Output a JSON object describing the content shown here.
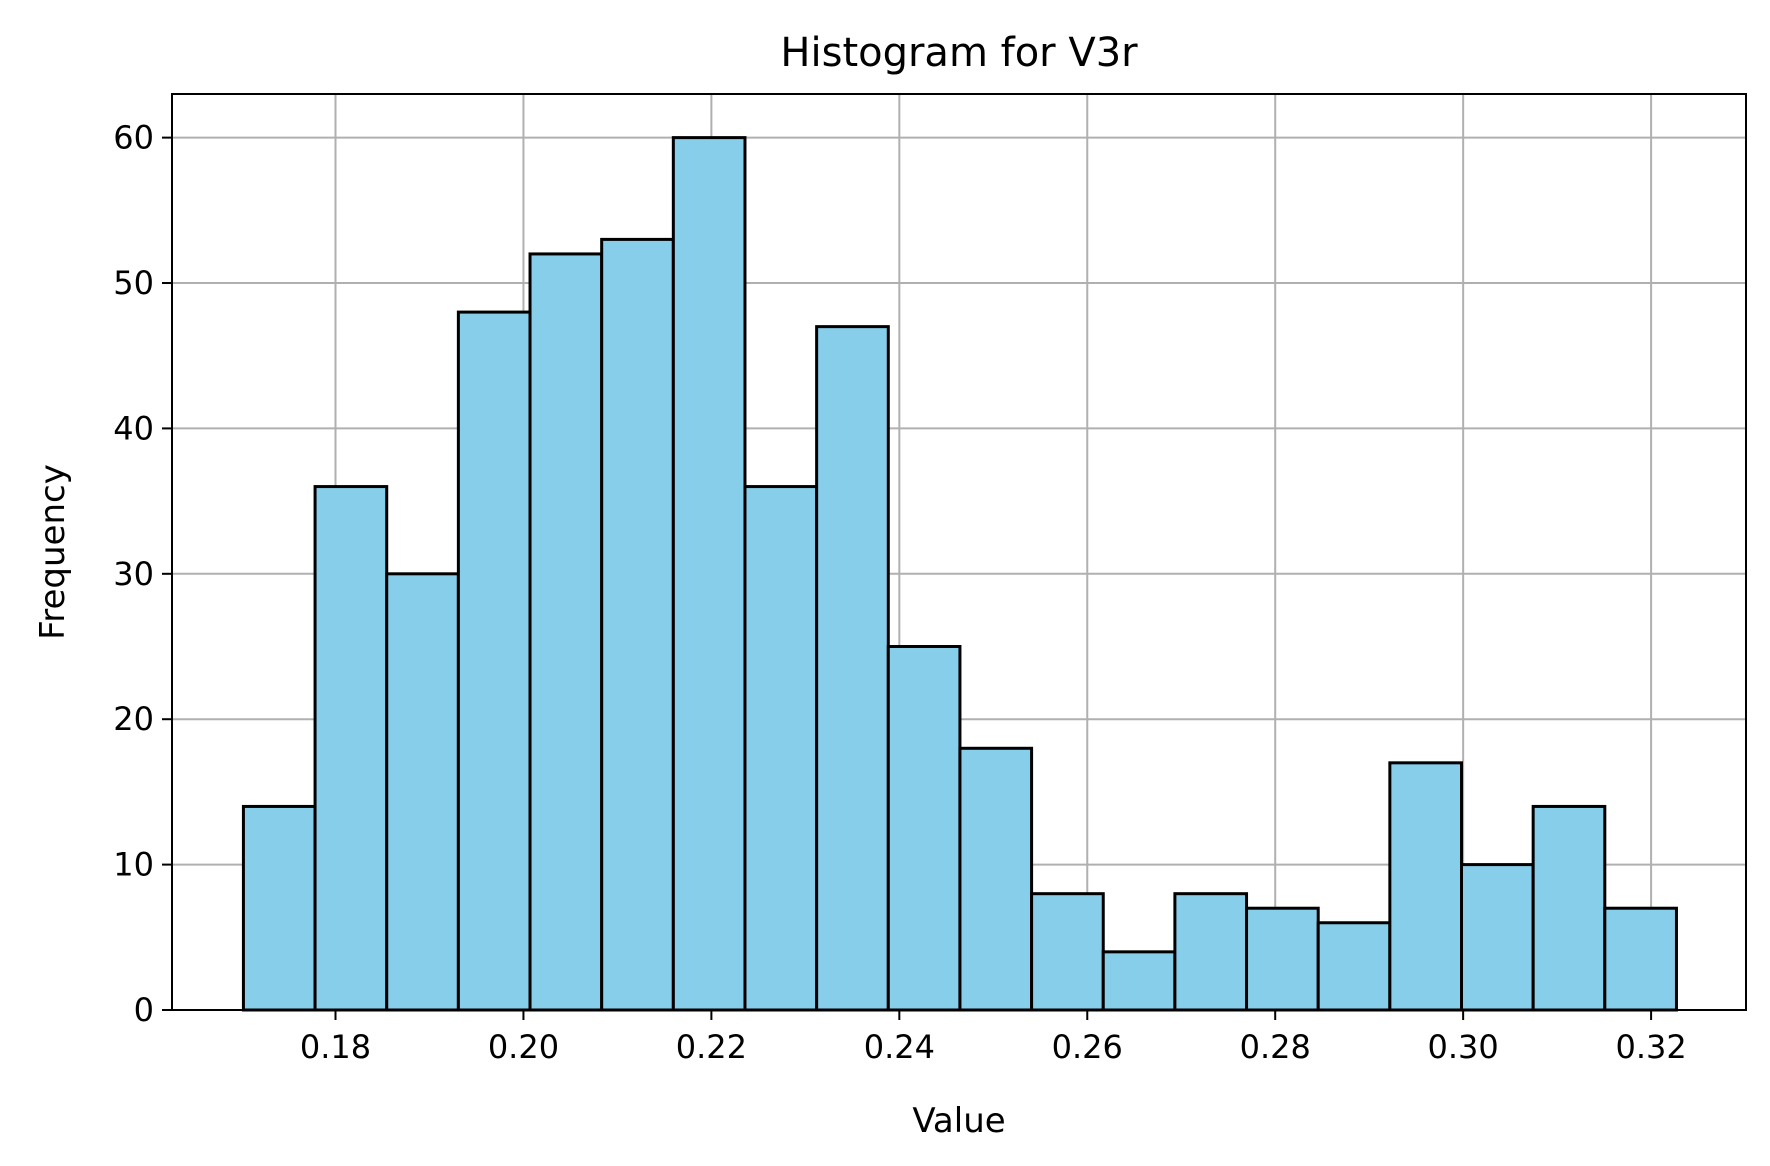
{
  "chart_data": {
    "type": "histogram",
    "title": "Histogram for V3r",
    "xlabel": "Value",
    "ylabel": "Frequency",
    "grid": true,
    "xlim": [
      0.1626,
      0.3301
    ],
    "ylim": [
      0,
      63
    ],
    "x_ticks": [
      0.18,
      0.2,
      0.22,
      0.24,
      0.26,
      0.28,
      0.3,
      0.32
    ],
    "x_tick_labels": [
      "0.18",
      "0.20",
      "0.22",
      "0.24",
      "0.26",
      "0.28",
      "0.30",
      "0.32"
    ],
    "y_ticks": [
      0,
      10,
      20,
      30,
      40,
      50,
      60
    ],
    "y_tick_labels": [
      "0",
      "10",
      "20",
      "30",
      "40",
      "50",
      "60"
    ],
    "bin_range": [
      0.1702,
      0.3227
    ],
    "counts": [
      14,
      36,
      30,
      48,
      52,
      53,
      60,
      36,
      47,
      25,
      18,
      8,
      4,
      8,
      7,
      6,
      17,
      10,
      14,
      7
    ],
    "bar_color": "#87ceeb",
    "edge_color": "#000000",
    "grid_color": "#b0b0b0"
  }
}
